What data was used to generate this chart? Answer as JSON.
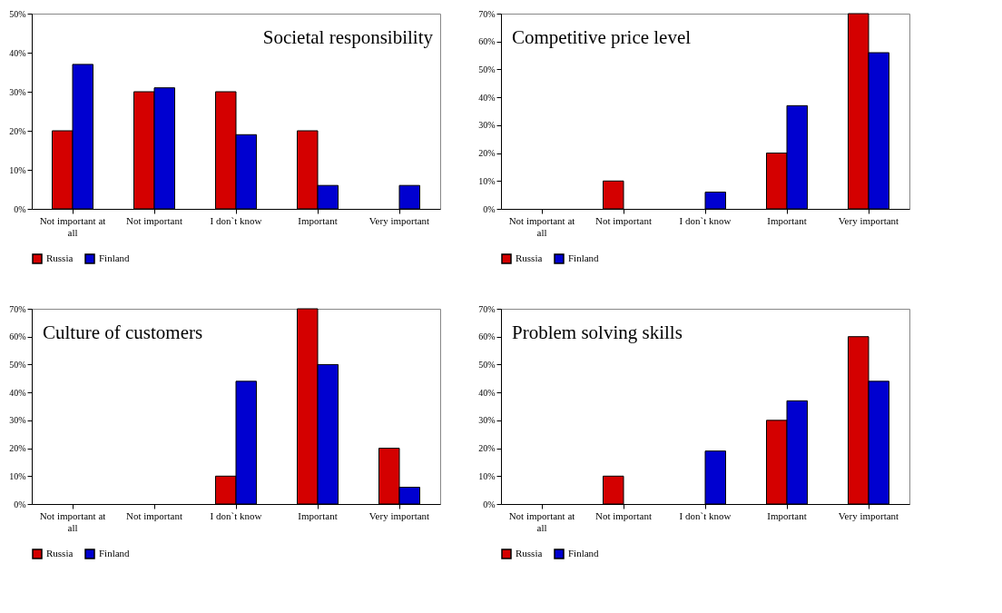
{
  "chart_data": [
    {
      "type": "bar",
      "title": "Societal responsibility",
      "categories": [
        "Not important at all",
        "Not important",
        "I don`t know",
        "Important",
        "Very important"
      ],
      "series": [
        {
          "name": "Russia",
          "color": "#d40000",
          "values": [
            20,
            30,
            30,
            20,
            null
          ]
        },
        {
          "name": "Finland",
          "color": "#0000d0",
          "values": [
            37,
            31,
            19,
            6,
            6
          ]
        }
      ],
      "ylim": [
        0,
        50
      ],
      "yticks": [
        {
          "value": 0,
          "label": "0%"
        },
        {
          "value": 10,
          "label": "10%"
        },
        {
          "value": 20,
          "label": "20%"
        },
        {
          "value": 30,
          "label": "30%"
        },
        {
          "value": 40,
          "label": "40%"
        },
        {
          "value": 50,
          "label": "50%"
        }
      ],
      "legend": "bottom"
    },
    {
      "type": "bar",
      "title": "Competitive price level",
      "categories": [
        "Not important at all",
        "Not important",
        "I don`t know",
        "Important",
        "Very important"
      ],
      "series": [
        {
          "name": "Russia",
          "color": "#d40000",
          "values": [
            null,
            10,
            null,
            20,
            70
          ]
        },
        {
          "name": "Finland",
          "color": "#0000d0",
          "values": [
            null,
            null,
            6,
            37,
            56
          ]
        }
      ],
      "ylim": [
        0,
        70
      ],
      "yticks": [
        {
          "value": 0,
          "label": "0%"
        },
        {
          "value": 10,
          "label": "10%"
        },
        {
          "value": 20,
          "label": "20%"
        },
        {
          "value": 30,
          "label": "30%"
        },
        {
          "value": 40,
          "label": "40%"
        },
        {
          "value": 50,
          "label": "50%"
        },
        {
          "value": 60,
          "label": "60%"
        },
        {
          "value": 70,
          "label": "70%"
        }
      ],
      "legend": "bottom"
    },
    {
      "type": "bar",
      "title": "Culture of customers",
      "categories": [
        "Not important at all",
        "Not important",
        "I don`t know",
        "Important",
        "Very important"
      ],
      "series": [
        {
          "name": "Russia",
          "color": "#d40000",
          "values": [
            null,
            null,
            10,
            70,
            20
          ]
        },
        {
          "name": "Finland",
          "color": "#0000d0",
          "values": [
            null,
            null,
            44,
            50,
            6
          ]
        }
      ],
      "ylim": [
        0,
        70
      ],
      "yticks": [
        {
          "value": 0,
          "label": "0%"
        },
        {
          "value": 10,
          "label": "10%"
        },
        {
          "value": 20,
          "label": "20%"
        },
        {
          "value": 30,
          "label": "30%"
        },
        {
          "value": 40,
          "label": "40%"
        },
        {
          "value": 50,
          "label": "50%"
        },
        {
          "value": 60,
          "label": "60%"
        },
        {
          "value": 70,
          "label": "70%"
        }
      ],
      "legend": "bottom"
    },
    {
      "type": "bar",
      "title": "Problem solving skills",
      "categories": [
        "Not important at all",
        "Not important",
        "I don`t know",
        "Important",
        "Very important"
      ],
      "series": [
        {
          "name": "Russia",
          "color": "#d40000",
          "values": [
            null,
            10,
            null,
            30,
            60
          ]
        },
        {
          "name": "Finland",
          "color": "#0000d0",
          "values": [
            null,
            null,
            19,
            37,
            44
          ]
        }
      ],
      "ylim": [
        0,
        70
      ],
      "yticks": [
        {
          "value": 0,
          "label": "0%"
        },
        {
          "value": 10,
          "label": "10%"
        },
        {
          "value": 20,
          "label": "20%"
        },
        {
          "value": 30,
          "label": "30%"
        },
        {
          "value": 40,
          "label": "40%"
        },
        {
          "value": 50,
          "label": "50%"
        },
        {
          "value": 60,
          "label": "60%"
        },
        {
          "value": 70,
          "label": "70%"
        }
      ],
      "legend": "bottom"
    }
  ]
}
